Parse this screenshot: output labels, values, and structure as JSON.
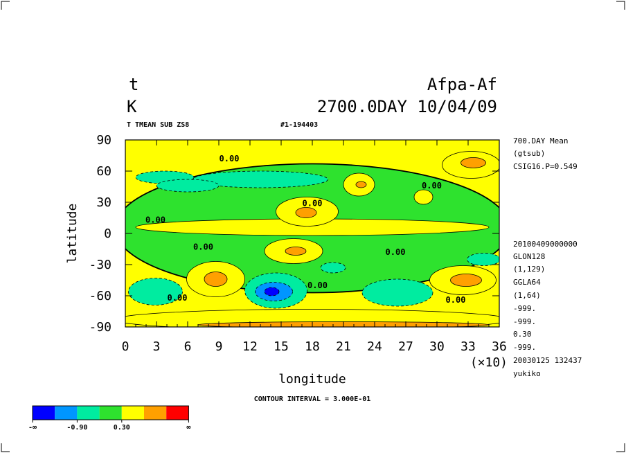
{
  "header": {
    "var_name": "t",
    "units": "K",
    "experiment": "Afpa-Af",
    "time_label": "2700.0DAY 10/04/09",
    "subtitle_left": "T TMEAN SUB ZS8",
    "subtitle_right": "#1-194403"
  },
  "side_info": [
    "700.DAY Mean",
    "(gtsub)",
    "CSIG16.P=0.549",
    "20100409000000",
    "GLON128",
    "(1,129)",
    "GGLA64",
    "(1,64)",
    "-999.",
    "-999.",
    "0.30",
    "-999.",
    "20030125 132437",
    "yukiko"
  ],
  "chart_data": {
    "type": "heatmap",
    "title": "t",
    "xlabel": "longitude",
    "ylabel": "latitude",
    "x_multiplier": "(×10)",
    "xlim": [
      0,
      360
    ],
    "ylim": [
      -90,
      90
    ],
    "x_ticks": [
      "0",
      "3",
      "6",
      "9",
      "12",
      "15",
      "18",
      "21",
      "24",
      "27",
      "30",
      "33",
      "36"
    ],
    "y_ticks": [
      "90",
      "60",
      "30",
      "0",
      "-30",
      "-60",
      "-90"
    ],
    "contour_interval": "CONTOUR INTERVAL = 3.000E-01",
    "contour_labels": [
      {
        "text": "0.00",
        "x": 100,
        "y": 72
      },
      {
        "text": "0.00",
        "x": 29,
        "y": 13
      },
      {
        "text": "0.00",
        "x": 180,
        "y": 29
      },
      {
        "text": "0.00",
        "x": 295,
        "y": 46
      },
      {
        "text": "0.00",
        "x": 75,
        "y": -13
      },
      {
        "text": "0.00",
        "x": 260,
        "y": -18
      },
      {
        "text": "0.00",
        "x": 185,
        "y": -50
      },
      {
        "text": "0.00",
        "x": 50,
        "y": -62
      },
      {
        "text": "0.00",
        "x": 318,
        "y": -64
      }
    ],
    "levels": [
      {
        "name": "lt -0.90",
        "color": "#0000ff"
      },
      {
        "name": "-0.90 to -0.60",
        "color": "#0096ff"
      },
      {
        "name": "-0.60 to -0.30",
        "color": "#00eca0"
      },
      {
        "name": "-0.30 to 0.00",
        "color": "#2ee22e"
      },
      {
        "name": "0.00 to 0.30",
        "color": "#ffff00"
      },
      {
        "name": "0.30 to 0.60",
        "color": "#ffa000"
      },
      {
        "name": "gt 0.60",
        "color": "#ff0000"
      }
    ],
    "features": [
      {
        "level": 3,
        "cx": 180,
        "cy": 5,
        "rx": 190,
        "ry": 62
      },
      {
        "level": 4,
        "cx": 180,
        "cy": 6,
        "rx": 170,
        "ry": 8
      },
      {
        "level": 4,
        "cx": 175,
        "cy": 21,
        "rx": 30,
        "ry": 14
      },
      {
        "level": 5,
        "cx": 174,
        "cy": 20,
        "rx": 10,
        "ry": 5
      },
      {
        "level": 4,
        "cx": 162,
        "cy": -17,
        "rx": 28,
        "ry": 12
      },
      {
        "level": 5,
        "cx": 164,
        "cy": -17,
        "rx": 10,
        "ry": 4
      },
      {
        "level": 2,
        "cx": 130,
        "cy": 52,
        "rx": 65,
        "ry": 8
      },
      {
        "level": 2,
        "cx": 38,
        "cy": 54,
        "rx": 28,
        "ry": 6
      },
      {
        "level": 2,
        "cx": 60,
        "cy": 46,
        "rx": 30,
        "ry": 6
      },
      {
        "level": 4,
        "cx": 225,
        "cy": 47,
        "rx": 15,
        "ry": 11
      },
      {
        "level": 5,
        "cx": 227,
        "cy": 47,
        "rx": 5,
        "ry": 3
      },
      {
        "level": 4,
        "cx": 333,
        "cy": 66,
        "rx": 28,
        "ry": 13
      },
      {
        "level": 5,
        "cx": 335,
        "cy": 68,
        "rx": 12,
        "ry": 5
      },
      {
        "level": 4,
        "cx": 287,
        "cy": 35,
        "rx": 9,
        "ry": 7
      },
      {
        "level": 2,
        "cx": 345,
        "cy": -25,
        "rx": 16,
        "ry": 6
      },
      {
        "level": 2,
        "cx": 200,
        "cy": -33,
        "rx": 12,
        "ry": 5
      },
      {
        "level": 4,
        "cx": 87,
        "cy": -44,
        "rx": 28,
        "ry": 17
      },
      {
        "level": 5,
        "cx": 87,
        "cy": -44,
        "rx": 11,
        "ry": 7
      },
      {
        "level": 2,
        "cx": 29,
        "cy": -56,
        "rx": 26,
        "ry": 13
      },
      {
        "level": 2,
        "cx": 145,
        "cy": -55,
        "rx": 30,
        "ry": 17
      },
      {
        "level": 1,
        "cx": 143,
        "cy": -56,
        "rx": 18,
        "ry": 9
      },
      {
        "level": 0,
        "cx": 141,
        "cy": -56,
        "rx": 7,
        "ry": 4
      },
      {
        "level": 2,
        "cx": 262,
        "cy": -57,
        "rx": 34,
        "ry": 13
      },
      {
        "level": 4,
        "cx": 325,
        "cy": -45,
        "rx": 32,
        "ry": 14
      },
      {
        "level": 5,
        "cx": 328,
        "cy": -45,
        "rx": 15,
        "ry": 6
      },
      {
        "level": 4,
        "cx": 180,
        "cy": -83,
        "rx": 190,
        "ry": 10
      },
      {
        "level": 5,
        "cx": 210,
        "cy": -88,
        "rx": 140,
        "ry": 3
      }
    ]
  },
  "colorbar": {
    "labels": [
      "-∞",
      "-0.90",
      "0.30",
      "∞"
    ],
    "colors": [
      "#0000ff",
      "#0096ff",
      "#00eca0",
      "#2ee22e",
      "#ffff00",
      "#ffa000",
      "#ff0000"
    ]
  }
}
